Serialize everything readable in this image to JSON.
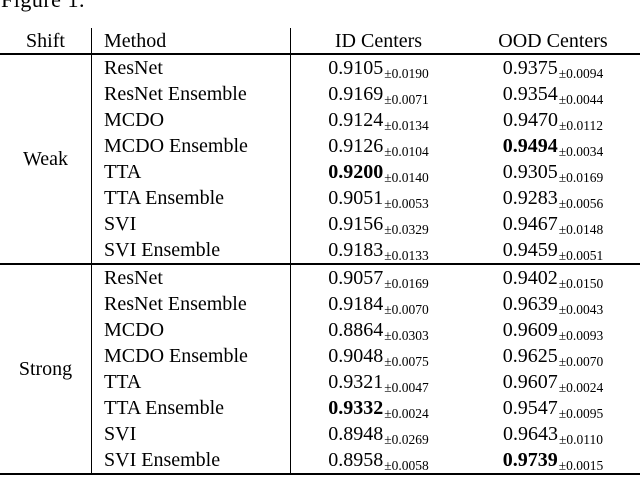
{
  "figure_label": "Figure 1.",
  "colors": {
    "text": "#000000",
    "background": "#ffffff",
    "rule": "#000000"
  },
  "table": {
    "headers": {
      "shift": "Shift",
      "method": "Method",
      "id_centers": "ID Centers",
      "ood_centers": "OOD Centers"
    },
    "groups": [
      {
        "shift": "Weak",
        "rows": [
          {
            "method": "ResNet",
            "id": {
              "value": "0.9105",
              "pm": "±0.0190",
              "bold": false
            },
            "ood": {
              "value": "0.9375",
              "pm": "±0.0094",
              "bold": false
            }
          },
          {
            "method": "ResNet Ensemble",
            "id": {
              "value": "0.9169",
              "pm": "±0.0071",
              "bold": false
            },
            "ood": {
              "value": "0.9354",
              "pm": "±0.0044",
              "bold": false
            }
          },
          {
            "method": "MCDO",
            "id": {
              "value": "0.9124",
              "pm": "±0.0134",
              "bold": false
            },
            "ood": {
              "value": "0.9470",
              "pm": "±0.0112",
              "bold": false
            }
          },
          {
            "method": "MCDO Ensemble",
            "id": {
              "value": "0.9126",
              "pm": "±0.0104",
              "bold": false
            },
            "ood": {
              "value": "0.9494",
              "pm": "±0.0034",
              "bold": true
            }
          },
          {
            "method": "TTA",
            "id": {
              "value": "0.9200",
              "pm": "±0.0140",
              "bold": true
            },
            "ood": {
              "value": "0.9305",
              "pm": "±0.0169",
              "bold": false
            }
          },
          {
            "method": "TTA Ensemble",
            "id": {
              "value": "0.9051",
              "pm": "±0.0053",
              "bold": false
            },
            "ood": {
              "value": "0.9283",
              "pm": "±0.0056",
              "bold": false
            }
          },
          {
            "method": "SVI",
            "id": {
              "value": "0.9156",
              "pm": "±0.0329",
              "bold": false
            },
            "ood": {
              "value": "0.9467",
              "pm": "±0.0148",
              "bold": false
            }
          },
          {
            "method": "SVI Ensemble",
            "id": {
              "value": "0.9183",
              "pm": "±0.0133",
              "bold": false
            },
            "ood": {
              "value": "0.9459",
              "pm": "±0.0051",
              "bold": false
            }
          }
        ]
      },
      {
        "shift": "Strong",
        "rows": [
          {
            "method": "ResNet",
            "id": {
              "value": "0.9057",
              "pm": "±0.0169",
              "bold": false
            },
            "ood": {
              "value": "0.9402",
              "pm": "±0.0150",
              "bold": false
            }
          },
          {
            "method": "ResNet Ensemble",
            "id": {
              "value": "0.9184",
              "pm": "±0.0070",
              "bold": false
            },
            "ood": {
              "value": "0.9639",
              "pm": "±0.0043",
              "bold": false
            }
          },
          {
            "method": "MCDO",
            "id": {
              "value": "0.8864",
              "pm": "±0.0303",
              "bold": false
            },
            "ood": {
              "value": "0.9609",
              "pm": "±0.0093",
              "bold": false
            }
          },
          {
            "method": "MCDO Ensemble",
            "id": {
              "value": "0.9048",
              "pm": "±0.0075",
              "bold": false
            },
            "ood": {
              "value": "0.9625",
              "pm": "±0.0070",
              "bold": false
            }
          },
          {
            "method": "TTA",
            "id": {
              "value": "0.9321",
              "pm": "±0.0047",
              "bold": false
            },
            "ood": {
              "value": "0.9607",
              "pm": "±0.0024",
              "bold": false
            }
          },
          {
            "method": "TTA Ensemble",
            "id": {
              "value": "0.9332",
              "pm": "±0.0024",
              "bold": true
            },
            "ood": {
              "value": "0.9547",
              "pm": "±0.0095",
              "bold": false
            }
          },
          {
            "method": "SVI",
            "id": {
              "value": "0.8948",
              "pm": "±0.0269",
              "bold": false
            },
            "ood": {
              "value": "0.9643",
              "pm": "±0.0110",
              "bold": false
            }
          },
          {
            "method": "SVI Ensemble",
            "id": {
              "value": "0.8958",
              "pm": "±0.0058",
              "bold": false
            },
            "ood": {
              "value": "0.9739",
              "pm": "±0.0015",
              "bold": true
            }
          }
        ]
      }
    ]
  }
}
